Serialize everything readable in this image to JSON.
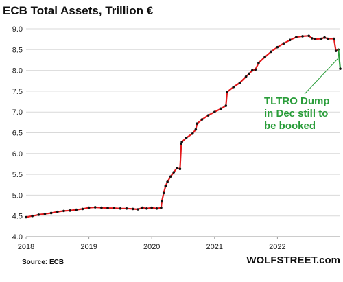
{
  "chart_data": {
    "type": "line",
    "title": "ECB Total Assets, Trillion €",
    "xlabel": "",
    "ylabel": "",
    "xlim": [
      2018.0,
      2023.0
    ],
    "ylim": [
      4.0,
      9.0
    ],
    "x_ticks": [
      "2018",
      "2019",
      "2020",
      "2021",
      "2022"
    ],
    "x_tick_values": [
      2018,
      2019,
      2020,
      2021,
      2022
    ],
    "y_ticks": [
      "4.0",
      "4.5",
      "5.0",
      "5.5",
      "6.0",
      "6.5",
      "7.0",
      "7.5",
      "8.0",
      "8.5",
      "9.0"
    ],
    "y_tick_values": [
      4.0,
      4.5,
      5.0,
      5.5,
      6.0,
      6.5,
      7.0,
      7.5,
      8.0,
      8.5,
      9.0
    ],
    "grid": true,
    "line_color": "#e41a1c",
    "marker_color": "#111111",
    "series": [
      {
        "x": [
          2018.0,
          2018.1,
          2018.2,
          2018.3,
          2018.4,
          2018.5,
          2018.6,
          2018.7,
          2018.8,
          2018.9,
          2019.0,
          2019.1,
          2019.2,
          2019.3,
          2019.4,
          2019.5,
          2019.6,
          2019.7,
          2019.78,
          2019.85,
          2019.92,
          2020.0,
          2020.08,
          2020.15,
          2020.16,
          2020.19,
          2020.22,
          2020.25,
          2020.3,
          2020.35,
          2020.4,
          2020.45,
          2020.47,
          2020.48,
          2020.55,
          2020.65,
          2020.7,
          2020.72,
          2020.8,
          2020.9,
          2021.0,
          2021.1,
          2021.18,
          2021.2,
          2021.3,
          2021.4,
          2021.5,
          2021.55,
          2021.6,
          2021.65,
          2021.7,
          2021.8,
          2021.9,
          2022.0,
          2022.1,
          2022.2,
          2022.3,
          2022.4,
          2022.5,
          2022.55,
          2022.6,
          2022.7,
          2022.75,
          2022.8,
          2022.9,
          2022.93,
          2022.97
        ],
        "y": [
          4.47,
          4.5,
          4.53,
          4.55,
          4.57,
          4.6,
          4.62,
          4.63,
          4.65,
          4.67,
          4.7,
          4.71,
          4.7,
          4.69,
          4.69,
          4.68,
          4.68,
          4.67,
          4.66,
          4.7,
          4.68,
          4.7,
          4.68,
          4.7,
          4.85,
          5.05,
          5.22,
          5.32,
          5.45,
          5.55,
          5.65,
          5.63,
          6.24,
          6.28,
          6.38,
          6.48,
          6.58,
          6.72,
          6.82,
          6.92,
          7.0,
          7.08,
          7.15,
          7.48,
          7.6,
          7.7,
          7.85,
          7.92,
          8.0,
          8.02,
          8.18,
          8.32,
          8.45,
          8.56,
          8.65,
          8.73,
          8.8,
          8.82,
          8.83,
          8.77,
          8.75,
          8.76,
          8.79,
          8.76,
          8.76,
          8.47,
          8.5
        ]
      }
    ],
    "projection": {
      "x": [
        2022.97,
        2023.0
      ],
      "y": [
        8.5,
        8.04
      ],
      "color": "#2a9d3a"
    },
    "annotation": {
      "lines": [
        "TLTRO Dump",
        "in Dec still to",
        "be booked"
      ],
      "color": "#2a9d3a",
      "pointer_to": [
        2022.96,
        8.28
      ]
    },
    "source": "Source: ECB",
    "brand": "WOLFSTREET.com"
  }
}
